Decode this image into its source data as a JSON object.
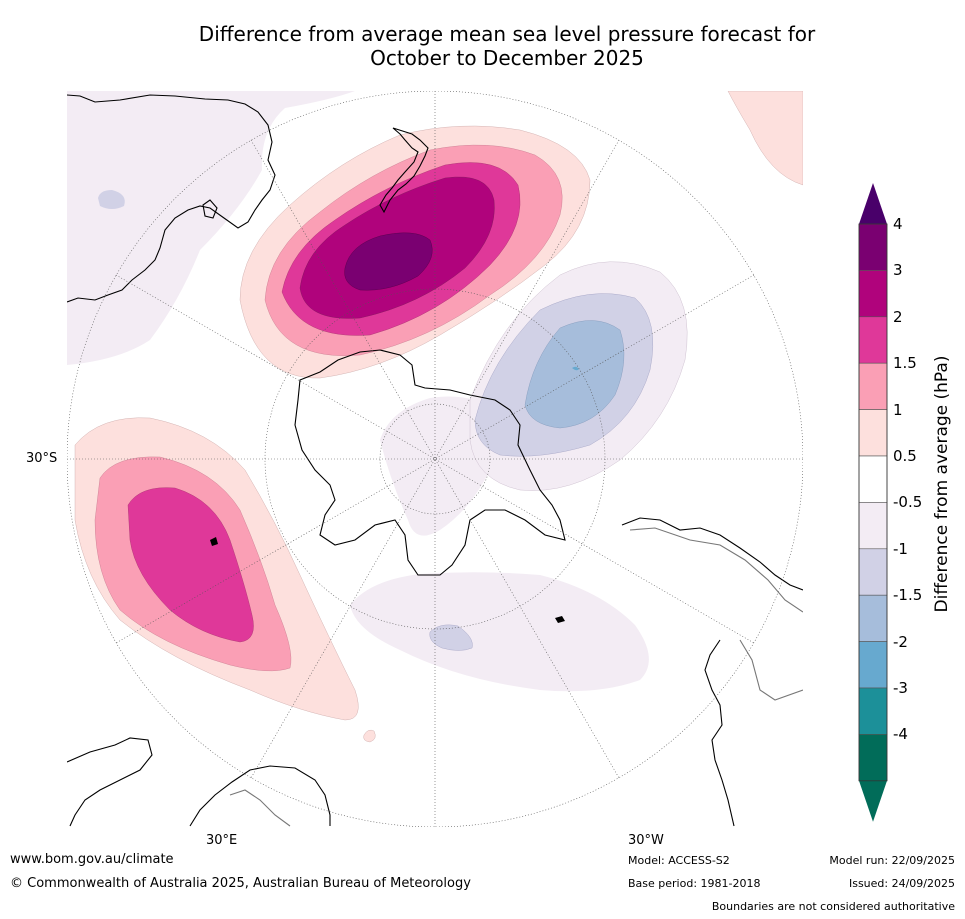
{
  "title": {
    "line1": "Difference from average mean sea level pressure forecast for",
    "line2": "October to December 2025"
  },
  "map": {
    "projection": "South polar stereographic",
    "lat_label": "30°S",
    "lon_labels": [
      "30°E",
      "30°W"
    ],
    "features": [
      "Australia",
      "New Zealand",
      "Antarctica",
      "South America",
      "Africa"
    ]
  },
  "legend": {
    "title": "Difference from average (hPa)",
    "ticks": [
      "4",
      "3",
      "2",
      "1.5",
      "1",
      "0.5",
      "-0.5",
      "-1",
      "-1.5",
      "-2",
      "-3",
      "-4"
    ],
    "colors": [
      "#7a0071",
      "#b0037c",
      "#df3899",
      "#fa9fb5",
      "#fde0dd",
      "#ffffff",
      "#f3ecf4",
      "#d1d1e6",
      "#a6bddb",
      "#67a9cf",
      "#1c9099",
      "#016c59"
    ],
    "over_color": "#49006a",
    "under_color": "#016c59"
  },
  "footer": {
    "website": "www.bom.gov.au/climate",
    "copyright": "© Commonwealth of Australia 2025, Australian Bureau of Meteorology",
    "model": "Model: ACCESS-S2",
    "base_period": "Base period: 1981-2018",
    "model_run": "Model run: 22/09/2025",
    "issued": "Issued: 24/09/2025",
    "disclaimer": "Boundaries are not considered authoritative"
  }
}
